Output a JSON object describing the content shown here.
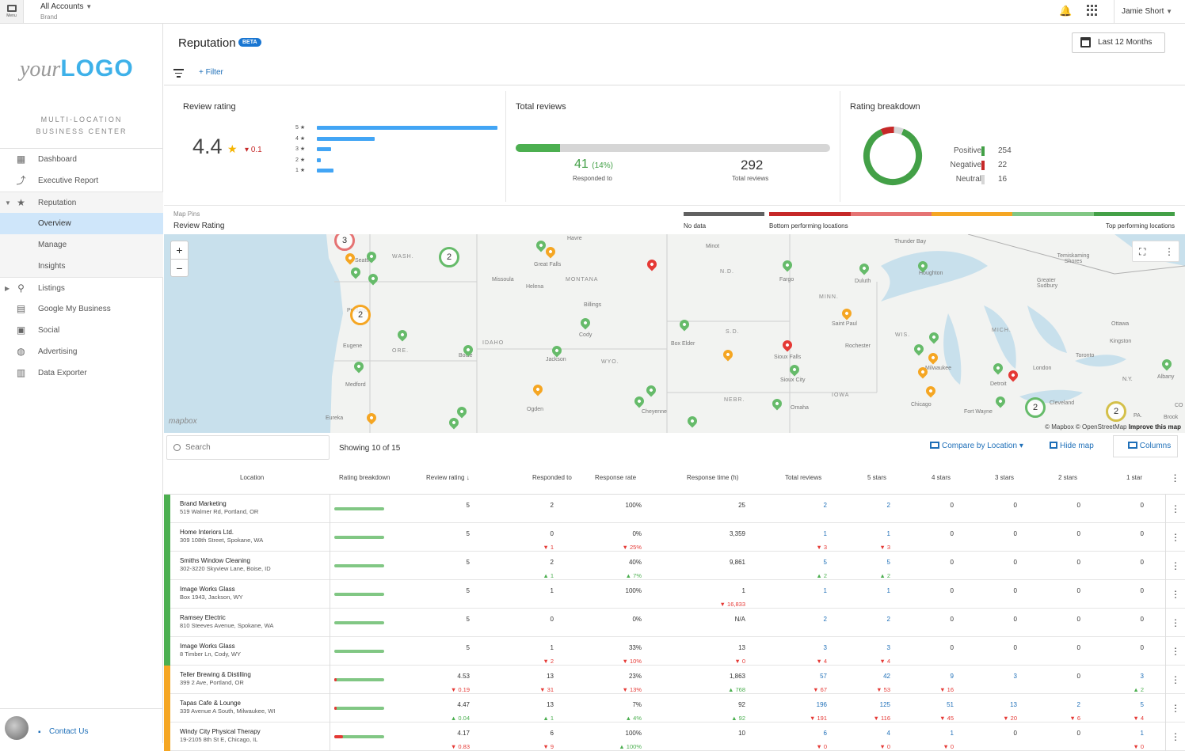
{
  "topbar": {
    "menu_label": "Menu",
    "account_title": "All Accounts",
    "account_sub": "Brand",
    "user_name": "Jamie Short"
  },
  "sidebar": {
    "logo_your": "your",
    "logo_logo": "LOGO",
    "tagline_1": "MULTI-LOCATION",
    "tagline_2": "BUSINESS CENTER",
    "items": [
      {
        "label": "Dashboard",
        "icon": "dashboard-icon"
      },
      {
        "label": "Executive Report",
        "icon": "trend-icon"
      },
      {
        "label": "Reputation",
        "icon": "star-icon"
      },
      {
        "label": "Overview"
      },
      {
        "label": "Manage"
      },
      {
        "label": "Insights"
      },
      {
        "label": "Listings",
        "icon": "pin-icon"
      },
      {
        "label": "Google My Business",
        "icon": "store-icon"
      },
      {
        "label": "Social",
        "icon": "chat-icon"
      },
      {
        "label": "Advertising",
        "icon": "globe-icon"
      },
      {
        "label": "Data Exporter",
        "icon": "export-icon"
      }
    ],
    "contact_label": "Contact Us"
  },
  "header": {
    "title": "Reputation",
    "badge": "BETA",
    "date_range": "Last 12 Months",
    "filter_add": "+ Filter"
  },
  "review_rating": {
    "title": "Review rating",
    "value": "4.4",
    "delta": "0.1",
    "stars": [
      {
        "label": "5 ★",
        "fraction": 1.0
      },
      {
        "label": "4 ★",
        "fraction": 0.32
      },
      {
        "label": "3 ★",
        "fraction": 0.08
      },
      {
        "label": "2 ★",
        "fraction": 0.02
      },
      {
        "label": "1 ★",
        "fraction": 0.09
      }
    ]
  },
  "total_reviews": {
    "title": "Total reviews",
    "responded": "41",
    "responded_pct": "(14%)",
    "responded_label": "Responded to",
    "responded_fraction": 0.14,
    "total": "292",
    "total_label": "Total reviews"
  },
  "rating_breakdown": {
    "title": "Rating breakdown",
    "items": [
      {
        "name": "Positive",
        "value": 254,
        "color": "#43a047"
      },
      {
        "name": "Negative",
        "value": 22,
        "color": "#c62828"
      },
      {
        "name": "Neutral",
        "value": 16,
        "color": "#d6d6d6"
      }
    ]
  },
  "map_legend": {
    "subtitle": "Map Pins",
    "title": "Review Rating",
    "no_data": "No data",
    "bottom": "Bottom performing locations",
    "top": "Top performing locations",
    "colors": {
      "no_data": "#616161",
      "red": "#c62828",
      "lightred": "#e57373",
      "orange": "#f5a623",
      "lightgreen": "#81c784",
      "green": "#43a047"
    }
  },
  "map": {
    "labels": [
      "Seattle",
      "Portland",
      "Eugene",
      "Medford",
      "Eureka",
      "Boise",
      "Jackson",
      "Ogden",
      "Cheyenne",
      "Cody",
      "Billings",
      "Missoula",
      "Helena",
      "Great Falls",
      "Havre",
      "Minot",
      "Fargo",
      "Duluth",
      "Saint Paul",
      "Rochester",
      "Sioux Falls",
      "Sioux City",
      "Omaha",
      "Box Elder",
      "Thunder Bay",
      "Houghton",
      "Milwaukee",
      "Chicago",
      "Detroit",
      "London",
      "Toronto",
      "Cleveland",
      "Fort Wayne",
      "Ottawa",
      "Kingston",
      "Albany",
      "Greater Sudbury",
      "Temiskaming Shores",
      "Brook",
      "PA.",
      "N.Y.",
      "CO"
    ],
    "states": [
      "WASH.",
      "ORE.",
      "IDAHO",
      "MONTANA",
      "WYO.",
      "N.D.",
      "S.D.",
      "NEBR.",
      "MINN.",
      "IOWA",
      "WIS.",
      "MICH."
    ],
    "clusters": [
      "3",
      "2",
      "2",
      "2",
      "2"
    ],
    "brand": "mapbox",
    "attribution": "© Mapbox © OpenStreetMap",
    "improve": "Improve this map"
  },
  "toolbar": {
    "search_placeholder": "Search",
    "showing": "Showing 10 of 15",
    "compare": "Compare by Location",
    "hide_map": "Hide map",
    "columns": "Columns"
  },
  "table": {
    "headers": [
      "Location",
      "Rating breakdown",
      "Review rating",
      "Responded to",
      "Response rate",
      "Response time (h)",
      "Total reviews",
      "5 stars",
      "4 stars",
      "3 stars",
      "2 stars",
      "1 star"
    ],
    "rows": [
      {
        "name": "Brand Marketing",
        "addr": "519 Walmer Rd, Portland, OR",
        "stripe": "#4caf50",
        "neg": 0,
        "cells": [
          [
            "5",
            ""
          ],
          [
            "2",
            ""
          ],
          [
            "100%",
            ""
          ],
          [
            "25",
            ""
          ],
          [
            "2",
            ""
          ],
          [
            "2",
            ""
          ],
          [
            "0",
            ""
          ],
          [
            "0",
            ""
          ],
          [
            "0",
            ""
          ],
          [
            "0",
            ""
          ]
        ]
      },
      {
        "name": "Home Interiors Ltd.",
        "addr": "309 108th Street, Spokane, WA",
        "stripe": "#4caf50",
        "neg": 0,
        "cells": [
          [
            "5",
            ""
          ],
          [
            "0",
            "▼ 1"
          ],
          [
            "0%",
            "▼ 25%"
          ],
          [
            "3,359",
            ""
          ],
          [
            "1",
            "▼ 3"
          ],
          [
            "1",
            "▼ 3"
          ],
          [
            "0",
            ""
          ],
          [
            "0",
            ""
          ],
          [
            "0",
            ""
          ],
          [
            "0",
            ""
          ]
        ]
      },
      {
        "name": "Smiths Window Cleaning",
        "addr": "302-3220 Skyview Lane, Boise, ID",
        "stripe": "#4caf50",
        "neg": 0,
        "cells": [
          [
            "5",
            ""
          ],
          [
            "2",
            "▲ 1"
          ],
          [
            "40%",
            "▲ 7%"
          ],
          [
            "9,861",
            ""
          ],
          [
            "5",
            "▲ 2"
          ],
          [
            "5",
            "▲ 2"
          ],
          [
            "0",
            ""
          ],
          [
            "0",
            ""
          ],
          [
            "0",
            ""
          ],
          [
            "0",
            ""
          ]
        ]
      },
      {
        "name": "Image Works Glass",
        "addr": "Box 1943, Jackson, WY",
        "stripe": "#4caf50",
        "neg": 0,
        "cells": [
          [
            "5",
            ""
          ],
          [
            "1",
            ""
          ],
          [
            "100%",
            ""
          ],
          [
            "1",
            "▼ 16,833"
          ],
          [
            "1",
            ""
          ],
          [
            "1",
            ""
          ],
          [
            "0",
            ""
          ],
          [
            "0",
            ""
          ],
          [
            "0",
            ""
          ],
          [
            "0",
            ""
          ]
        ]
      },
      {
        "name": "Ramsey Electric",
        "addr": "810 Steeves Avenue, Spokane, WA",
        "stripe": "#4caf50",
        "neg": 0,
        "cells": [
          [
            "5",
            ""
          ],
          [
            "0",
            ""
          ],
          [
            "0%",
            ""
          ],
          [
            "N/A",
            ""
          ],
          [
            "2",
            ""
          ],
          [
            "2",
            ""
          ],
          [
            "0",
            ""
          ],
          [
            "0",
            ""
          ],
          [
            "0",
            ""
          ],
          [
            "0",
            ""
          ]
        ]
      },
      {
        "name": "Image Works Glass",
        "addr": "8 Timber Ln, Cody, WY",
        "stripe": "#4caf50",
        "neg": 0,
        "cells": [
          [
            "5",
            ""
          ],
          [
            "1",
            "▼ 2"
          ],
          [
            "33%",
            "▼ 10%"
          ],
          [
            "13",
            "▼ 0"
          ],
          [
            "3",
            "▼ 4"
          ],
          [
            "3",
            "▼ 4"
          ],
          [
            "0",
            ""
          ],
          [
            "0",
            ""
          ],
          [
            "0",
            ""
          ],
          [
            "0",
            ""
          ]
        ]
      },
      {
        "name": "Teller Brewing & Distilling",
        "addr": "399 2 Ave, Portland, OR",
        "stripe": "#f5a623",
        "neg": 0.05,
        "cells": [
          [
            "4.53",
            "▼ 0.19"
          ],
          [
            "13",
            "▼ 31"
          ],
          [
            "23%",
            "▼ 13%"
          ],
          [
            "1,863",
            "▲ 768"
          ],
          [
            "57",
            "▼ 67"
          ],
          [
            "42",
            "▼ 53"
          ],
          [
            "9",
            "▼ 16"
          ],
          [
            "3",
            ""
          ],
          [
            "0",
            ""
          ],
          [
            "3",
            "▲ 2"
          ]
        ]
      },
      {
        "name": "Tapas Cafe & Lounge",
        "addr": "339 Avenue A South, Milwaukee, WI",
        "stripe": "#f5a623",
        "neg": 0.04,
        "cells": [
          [
            "4.47",
            "▲ 0.04"
          ],
          [
            "13",
            "▲ 1"
          ],
          [
            "7%",
            "▲ 4%"
          ],
          [
            "92",
            "▲ 92"
          ],
          [
            "196",
            "▼ 191"
          ],
          [
            "125",
            "▼ 116"
          ],
          [
            "51",
            "▼ 45"
          ],
          [
            "13",
            "▼ 20"
          ],
          [
            "2",
            "▼ 6"
          ],
          [
            "5",
            "▼ 4"
          ]
        ]
      },
      {
        "name": "Windy City Physical Therapy",
        "addr": "19-2105 8th St E, Chicago, IL",
        "stripe": "#f5a623",
        "neg": 0.17,
        "cells": [
          [
            "4.17",
            "▼ 0.83"
          ],
          [
            "6",
            "▼ 9"
          ],
          [
            "100%",
            "▲ 100%"
          ],
          [
            "10",
            ""
          ],
          [
            "6",
            "▼ 0"
          ],
          [
            "4",
            "▼ 0"
          ],
          [
            "1",
            "▼ 0"
          ],
          [
            "0",
            ""
          ],
          [
            "0",
            ""
          ],
          [
            "1",
            "▼ 0"
          ]
        ]
      }
    ]
  }
}
